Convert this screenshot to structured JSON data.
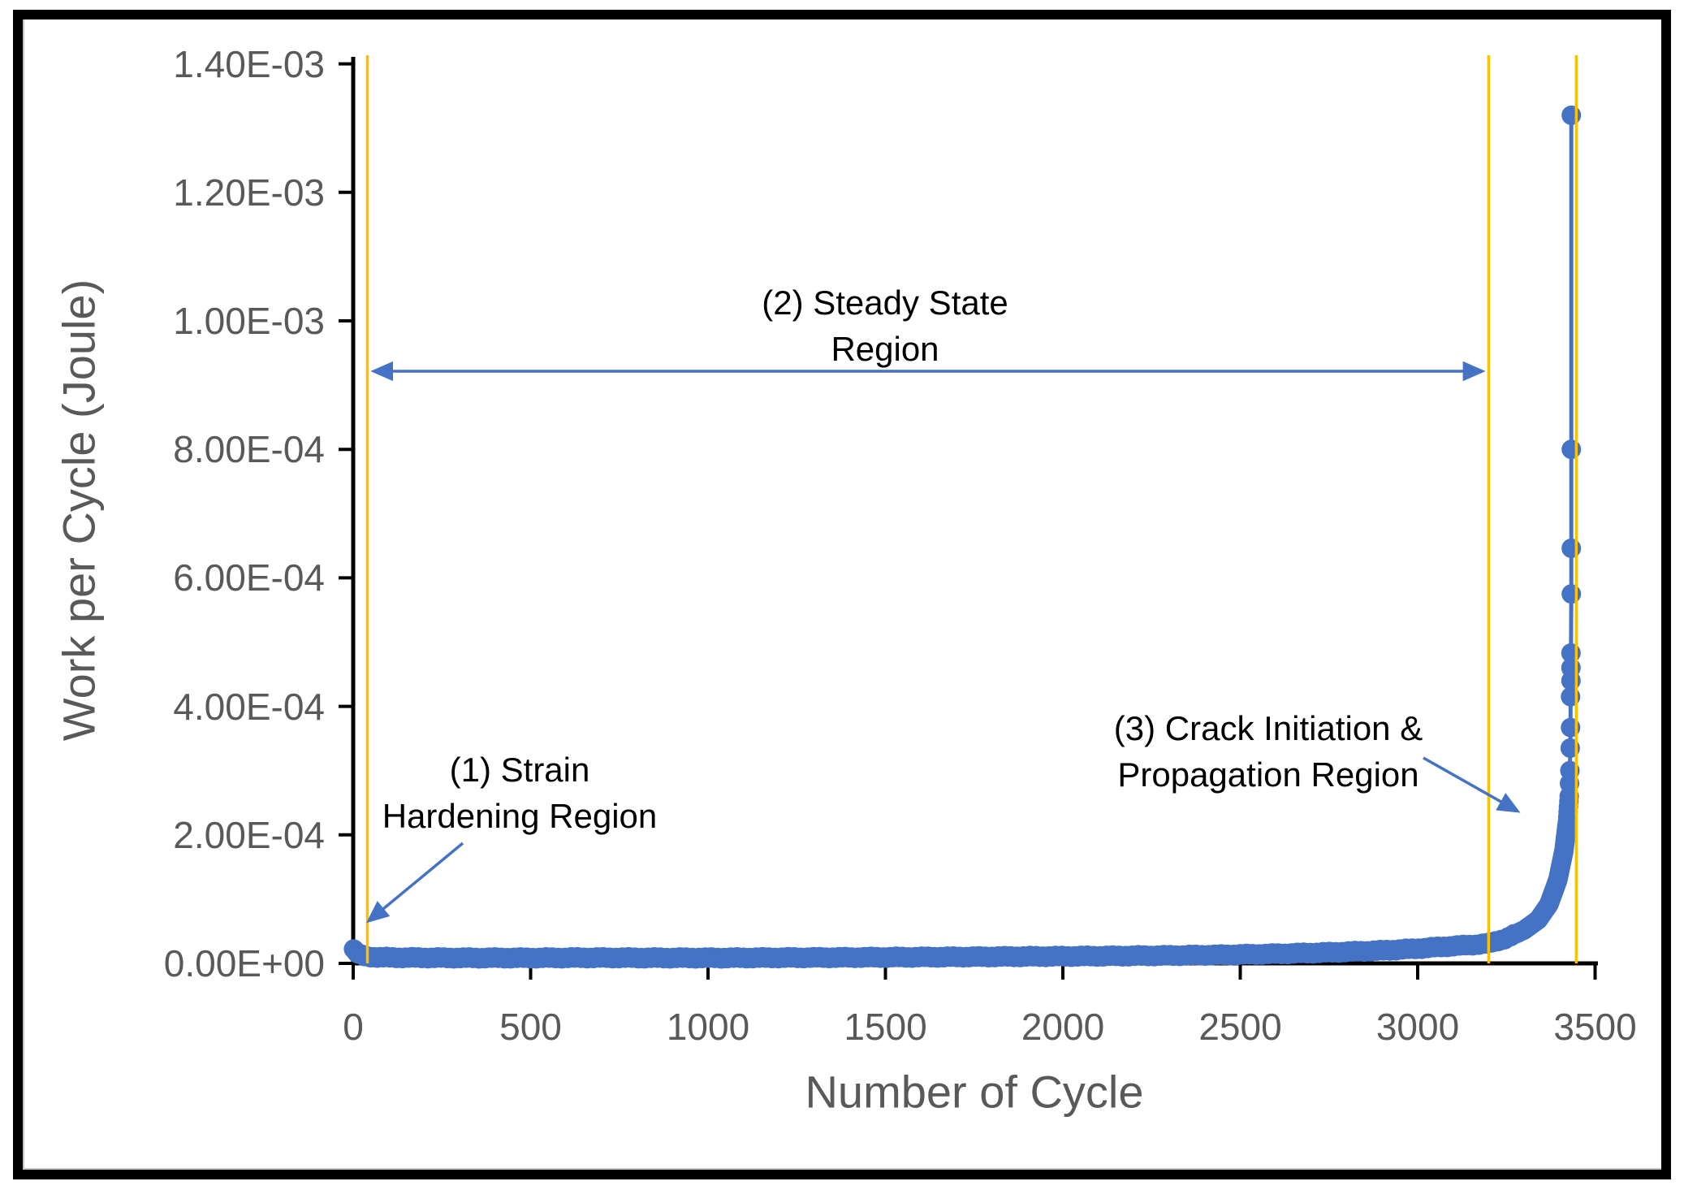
{
  "figure": {
    "background": "#ffffff",
    "border_color": "#000000"
  },
  "axis_style": {
    "tick_label_color": "#595959",
    "axis_title_color": "#595959",
    "axis_line_color": "#000000"
  },
  "chart_data": {
    "type": "scatter",
    "title": "",
    "xlabel": "Number of Cycle",
    "ylabel": "Work per Cycle (Joule)",
    "xlim": [
      0,
      3500
    ],
    "ylim": [
      0,
      0.0014
    ],
    "grid": false,
    "legend": null,
    "x_ticks": [
      0,
      500,
      1000,
      1500,
      2000,
      2500,
      3000,
      3500
    ],
    "x_tick_labels": [
      "0",
      "500",
      "1000",
      "1500",
      "2000",
      "2500",
      "3000",
      "3500"
    ],
    "y_ticks": [
      0,
      0.0002,
      0.0004,
      0.0006,
      0.0008,
      0.001,
      0.0012,
      0.0014
    ],
    "y_tick_labels": [
      "0.00E+00",
      "2.00E-04",
      "4.00E-04",
      "6.00E-04",
      "8.00E-04",
      "1.00E-03",
      "1.20E-03",
      "1.40E-03"
    ],
    "series": [
      {
        "name": "Work per cycle",
        "color": "#4472C4",
        "marker": "circle",
        "points": [
          [
            1,
            2.2e-05
          ],
          [
            3,
            2.05e-05
          ],
          [
            6,
            1.85e-05
          ],
          [
            10,
            1.65e-05
          ],
          [
            16,
            1.45e-05
          ],
          [
            24,
            1.25e-05
          ],
          [
            40,
            1.05e-05
          ],
          [
            70,
            9.5e-06
          ],
          [
            120,
            9e-06
          ],
          [
            200,
            8.7e-06
          ],
          [
            350,
            8.5e-06
          ],
          [
            500,
            8.5e-06
          ],
          [
            650,
            8.8e-06
          ],
          [
            800,
            8.6e-06
          ],
          [
            950,
            8.5e-06
          ],
          [
            1100,
            8.6e-06
          ],
          [
            1250,
            8.9e-06
          ],
          [
            1400,
            9.2e-06
          ],
          [
            1550,
            9.6e-06
          ],
          [
            1700,
            1e-05
          ],
          [
            1850,
            1.05e-05
          ],
          [
            2000,
            1.1e-05
          ],
          [
            2150,
            1.15e-05
          ],
          [
            2300,
            1.22e-05
          ],
          [
            2450,
            1.32e-05
          ],
          [
            2600,
            1.48e-05
          ],
          [
            2750,
            1.7e-05
          ],
          [
            2900,
            2e-05
          ],
          [
            3000,
            2.3e-05
          ],
          [
            3100,
            2.7e-05
          ],
          [
            3160,
            2.9e-05
          ],
          [
            3200,
            3.1e-05
          ],
          [
            3250,
            3.9e-05
          ],
          [
            3300,
            5.2e-05
          ],
          [
            3340,
            6.8e-05
          ],
          [
            3370,
            9.2e-05
          ],
          [
            3395,
            0.00013
          ],
          [
            3412,
            0.000175
          ],
          [
            3422,
            0.00022
          ],
          [
            3427,
            0.00026
          ],
          [
            3429,
            0.0003
          ],
          [
            3430,
            0.000335
          ],
          [
            3431,
            0.000367
          ],
          [
            3431,
            0.000415
          ],
          [
            3432,
            0.00044
          ],
          [
            3432,
            0.00046
          ],
          [
            3432,
            0.000483
          ],
          [
            3433,
            0.000575
          ],
          [
            3433,
            0.000646
          ],
          [
            3433,
            0.0008
          ],
          [
            3433,
            0.00132
          ]
        ]
      }
    ],
    "region_boundaries_cycles": [
      40,
      3200,
      3447
    ],
    "boundary_line_color": "#FFC000",
    "failure_cycle_approx": 3433,
    "peak_work_joule": 0.00132
  },
  "annotations": {
    "arrow_color": "#4472C4",
    "text_color": "#000000",
    "region1": {
      "line1": "(1) Strain",
      "line2": "Hardening Region"
    },
    "region2": {
      "line1": "(2) Steady State",
      "line2": "Region"
    },
    "region3": {
      "line1": "(3) Crack Initiation &",
      "line2": "Propagation Region"
    }
  }
}
